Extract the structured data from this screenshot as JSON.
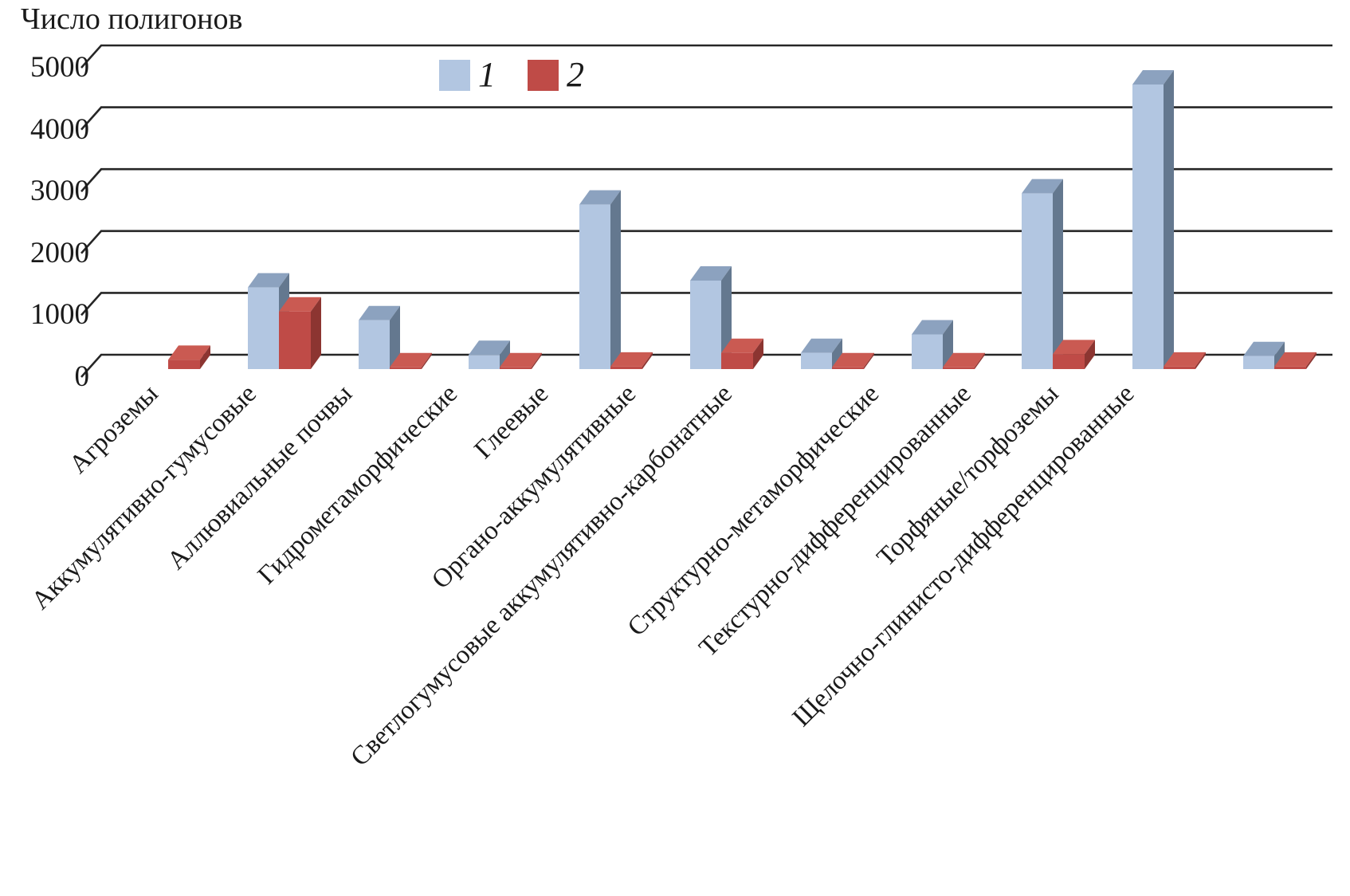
{
  "title": "Число полигонов",
  "chart_data": {
    "type": "bar",
    "projection": "3d",
    "title": "Число полигонов",
    "ylabel": "Число полигонов",
    "ylim": [
      0,
      5000
    ],
    "yticks": [
      0,
      1000,
      2000,
      3000,
      4000,
      5000
    ],
    "grid": true,
    "legend_position": "top-center",
    "categories": [
      "Агроземы",
      "Аккумулятивно-гумусовые",
      "Аллювиальные почвы",
      "Гидрометаморфические",
      "Глеевые",
      "Органо-аккумулятивные",
      "Светлогумусовые аккумулятивно-карбонатные",
      "Структурно-метаморфические",
      "Текстурно-дифференцированные",
      "Торфяные/торфоземы",
      "Щелочно-глинисто-дифференцированные"
    ],
    "series": [
      {
        "name": "1",
        "color": "#b2c6e1",
        "values": [
          0,
          1320,
          790,
          230,
          2660,
          1430,
          260,
          560,
          2840,
          4600,
          210
        ]
      },
      {
        "name": "2",
        "color": "#bf4b47",
        "values": [
          150,
          930,
          30,
          30,
          40,
          260,
          30,
          30,
          240,
          40,
          40
        ]
      }
    ],
    "colors_3d": {
      "series1": {
        "front": "#b2c6e1",
        "top": "#8ca2bf",
        "side": "#64788f"
      },
      "series2": {
        "front": "#bf4b47",
        "top": "#ca5a52",
        "side": "#8c3531"
      }
    },
    "gridline_color": "#262626"
  }
}
